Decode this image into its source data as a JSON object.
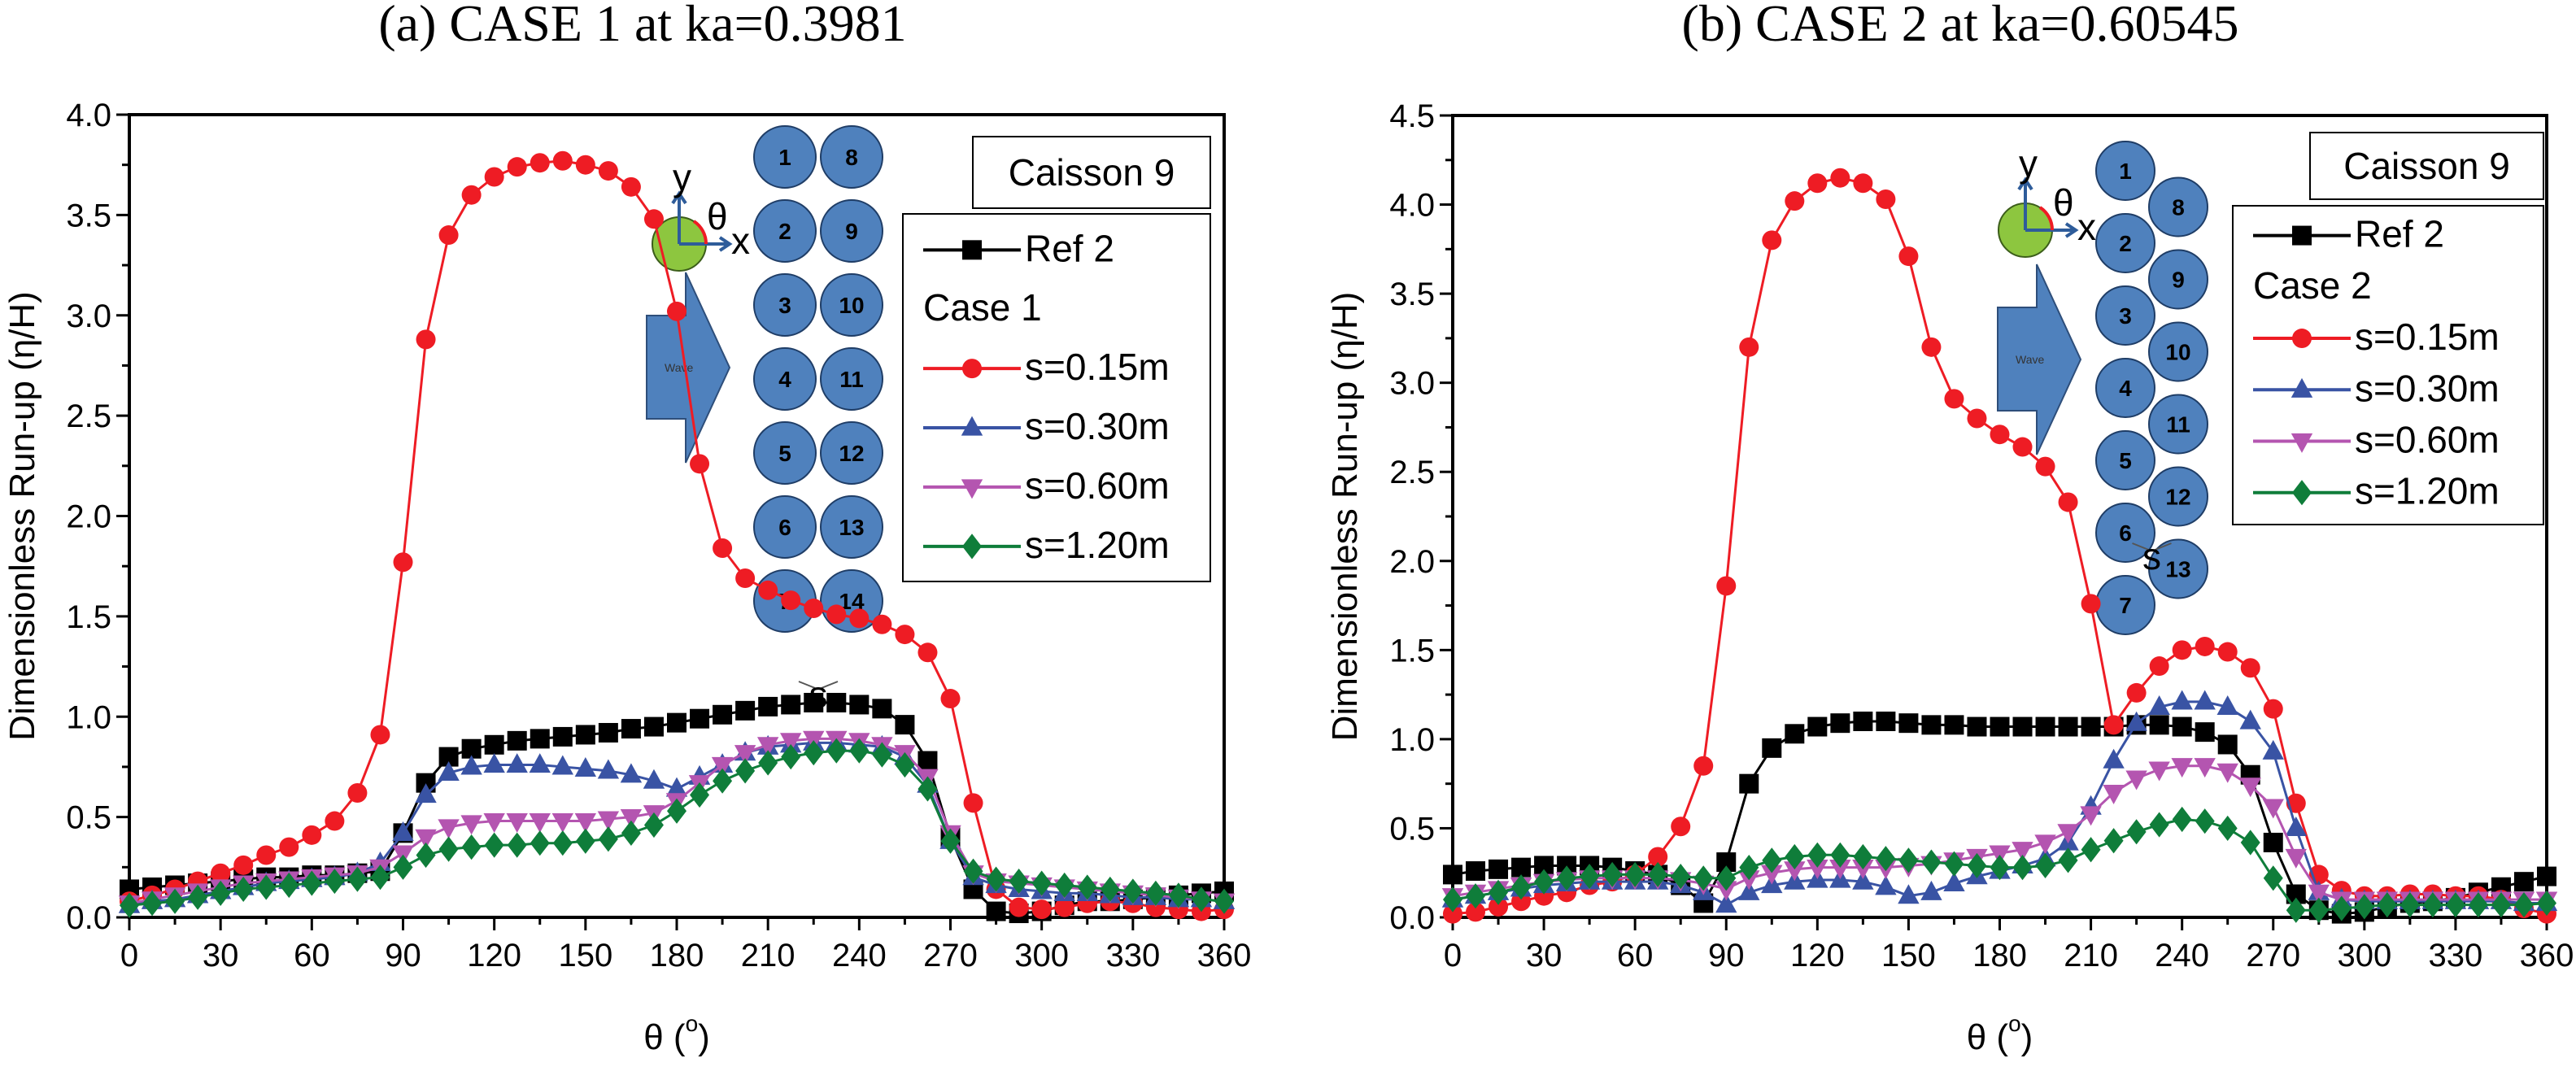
{
  "chart_data": [
    {
      "type": "line",
      "title": "(a) CASE 1 at ka=0.3981",
      "xlabel": "θ (°)",
      "xlabel_main": "θ (",
      "xlabel_sup": "o",
      "xlabel_close": ")",
      "ylabel": "Dimensionless Run-up (η/H)",
      "xlim": [
        0,
        360
      ],
      "ylim": [
        0,
        4.0
      ],
      "xticks": [
        0,
        30,
        60,
        90,
        120,
        150,
        180,
        210,
        240,
        270,
        300,
        330,
        360
      ],
      "xtick_labels": [
        "0",
        "30",
        "60",
        "90",
        "120",
        "150",
        "180",
        "210",
        "240",
        "270",
        "300",
        "330",
        "360"
      ],
      "yticks": [
        0,
        0.5,
        1.0,
        1.5,
        2.0,
        2.5,
        3.0,
        3.5,
        4.0
      ],
      "ytick_labels": [
        "0.0",
        "0.5",
        "1.0",
        "1.5",
        "2.0",
        "2.5",
        "3.0",
        "3.5",
        "4.0"
      ],
      "grid": false,
      "annotation_box": "Caisson 9",
      "legend_group_label": "Case 1",
      "legend_position": "top-right",
      "inset": {
        "axes": {
          "y": "y",
          "x": "x",
          "angle": "θ"
        },
        "arrow_label": "Wave",
        "gap_label": "s",
        "column_a": [
          "1",
          "2",
          "3",
          "4",
          "5",
          "6",
          "7"
        ],
        "column_b": [
          "8",
          "9",
          "10",
          "11",
          "12",
          "13",
          "14"
        ],
        "staggered": false
      },
      "x": [
        0,
        7.5,
        15,
        22.5,
        30,
        37.5,
        45,
        52.5,
        60,
        67.5,
        75,
        82.5,
        90,
        97.5,
        105,
        112.5,
        120,
        127.5,
        135,
        142.5,
        150,
        157.5,
        165,
        172.5,
        180,
        187.5,
        195,
        202.5,
        210,
        217.5,
        225,
        232.5,
        240,
        247.5,
        255,
        262.5,
        270,
        277.5,
        285,
        292.5,
        300,
        307.5,
        315,
        322.5,
        330,
        337.5,
        345,
        352.5,
        360
      ],
      "series": [
        {
          "name": "Ref 2",
          "color": "#000000",
          "marker": "square",
          "values": [
            0.14,
            0.15,
            0.16,
            0.17,
            0.18,
            0.19,
            0.2,
            0.2,
            0.21,
            0.21,
            0.22,
            0.23,
            0.42,
            0.67,
            0.8,
            0.84,
            0.86,
            0.88,
            0.89,
            0.9,
            0.91,
            0.92,
            0.94,
            0.95,
            0.97,
            0.99,
            1.01,
            1.03,
            1.05,
            1.06,
            1.07,
            1.07,
            1.06,
            1.04,
            0.96,
            0.78,
            0.4,
            0.14,
            0.03,
            0.02,
            0.03,
            0.06,
            0.08,
            0.08,
            0.09,
            0.1,
            0.11,
            0.12,
            0.13
          ]
        },
        {
          "name": "s=0.15m",
          "color": "#ee1c24",
          "marker": "circle",
          "values": [
            0.08,
            0.11,
            0.14,
            0.18,
            0.22,
            0.26,
            0.31,
            0.35,
            0.41,
            0.48,
            0.62,
            0.91,
            1.77,
            2.88,
            3.4,
            3.6,
            3.69,
            3.74,
            3.76,
            3.77,
            3.75,
            3.72,
            3.64,
            3.48,
            3.02,
            2.26,
            1.84,
            1.69,
            1.63,
            1.58,
            1.54,
            1.51,
            1.49,
            1.46,
            1.41,
            1.32,
            1.09,
            0.57,
            0.14,
            0.05,
            0.04,
            0.05,
            0.07,
            0.08,
            0.07,
            0.05,
            0.04,
            0.03,
            0.04
          ]
        },
        {
          "name": "s=0.30m",
          "color": "#3953a4",
          "marker": "triangle-up",
          "values": [
            0.06,
            0.08,
            0.09,
            0.11,
            0.13,
            0.15,
            0.17,
            0.18,
            0.19,
            0.2,
            0.22,
            0.27,
            0.42,
            0.61,
            0.72,
            0.75,
            0.76,
            0.76,
            0.76,
            0.75,
            0.74,
            0.73,
            0.71,
            0.68,
            0.64,
            0.7,
            0.76,
            0.82,
            0.85,
            0.86,
            0.87,
            0.87,
            0.86,
            0.85,
            0.8,
            0.66,
            0.38,
            0.2,
            0.16,
            0.14,
            0.13,
            0.12,
            0.12,
            0.11,
            0.1,
            0.1,
            0.09,
            0.09,
            0.08
          ]
        },
        {
          "name": "s=0.60m",
          "color": "#b455b0",
          "marker": "triangle-down",
          "values": [
            0.07,
            0.09,
            0.11,
            0.13,
            0.15,
            0.17,
            0.18,
            0.19,
            0.2,
            0.21,
            0.22,
            0.25,
            0.32,
            0.4,
            0.45,
            0.47,
            0.48,
            0.48,
            0.48,
            0.48,
            0.48,
            0.49,
            0.5,
            0.52,
            0.58,
            0.67,
            0.76,
            0.82,
            0.86,
            0.88,
            0.89,
            0.89,
            0.88,
            0.86,
            0.82,
            0.7,
            0.42,
            0.22,
            0.18,
            0.17,
            0.16,
            0.15,
            0.14,
            0.13,
            0.12,
            0.11,
            0.1,
            0.09,
            0.08
          ]
        },
        {
          "name": "s=1.20m",
          "color": "#0f7d3a",
          "marker": "diamond",
          "values": [
            0.06,
            0.07,
            0.08,
            0.1,
            0.12,
            0.14,
            0.15,
            0.16,
            0.17,
            0.18,
            0.19,
            0.2,
            0.25,
            0.31,
            0.34,
            0.35,
            0.36,
            0.36,
            0.37,
            0.37,
            0.38,
            0.39,
            0.42,
            0.46,
            0.53,
            0.61,
            0.68,
            0.73,
            0.77,
            0.8,
            0.82,
            0.83,
            0.83,
            0.81,
            0.76,
            0.64,
            0.38,
            0.23,
            0.19,
            0.18,
            0.17,
            0.16,
            0.15,
            0.14,
            0.13,
            0.12,
            0.11,
            0.09,
            0.08
          ]
        }
      ]
    },
    {
      "type": "line",
      "title": "(b) CASE 2 at ka=0.60545",
      "xlabel": "θ (°)",
      "xlabel_main": "θ (",
      "xlabel_sup": "o",
      "xlabel_close": ")",
      "ylabel": "Dimensionless Run-up (η/H)",
      "xlim": [
        0,
        360
      ],
      "ylim": [
        0,
        4.5
      ],
      "xticks": [
        0,
        30,
        60,
        90,
        120,
        150,
        180,
        210,
        240,
        270,
        300,
        330,
        360
      ],
      "xtick_labels": [
        "0",
        "30",
        "60",
        "90",
        "120",
        "150",
        "180",
        "210",
        "240",
        "270",
        "300",
        "330",
        "360"
      ],
      "yticks": [
        0,
        0.5,
        1.0,
        1.5,
        2.0,
        2.5,
        3.0,
        3.5,
        4.0,
        4.5
      ],
      "ytick_labels": [
        "0.0",
        "0.5",
        "1.0",
        "1.5",
        "2.0",
        "2.5",
        "3.0",
        "3.5",
        "4.0",
        "4.5"
      ],
      "grid": false,
      "annotation_box": "Caisson 9",
      "legend_group_label": "Case 2",
      "legend_position": "top-right",
      "inset": {
        "axes": {
          "y": "y",
          "x": "x",
          "angle": "θ"
        },
        "arrow_label": "Wave",
        "gap_label": "s",
        "column_a": [
          "1",
          "2",
          "3",
          "4",
          "5",
          "6",
          "7"
        ],
        "column_b": [
          "8",
          "9",
          "10",
          "11",
          "12",
          "13"
        ],
        "staggered": true
      },
      "x": [
        0,
        7.5,
        15,
        22.5,
        30,
        37.5,
        45,
        52.5,
        60,
        67.5,
        75,
        82.5,
        90,
        97.5,
        105,
        112.5,
        120,
        127.5,
        135,
        142.5,
        150,
        157.5,
        165,
        172.5,
        180,
        187.5,
        195,
        202.5,
        210,
        217.5,
        225,
        232.5,
        240,
        247.5,
        255,
        262.5,
        270,
        277.5,
        285,
        292.5,
        300,
        307.5,
        315,
        322.5,
        330,
        337.5,
        345,
        352.5,
        360
      ],
      "series": [
        {
          "name": "Ref 2",
          "color": "#000000",
          "marker": "square",
          "values": [
            0.24,
            0.26,
            0.27,
            0.28,
            0.29,
            0.29,
            0.29,
            0.28,
            0.26,
            0.24,
            0.18,
            0.08,
            0.31,
            0.75,
            0.95,
            1.03,
            1.07,
            1.09,
            1.1,
            1.1,
            1.09,
            1.08,
            1.08,
            1.07,
            1.07,
            1.07,
            1.07,
            1.07,
            1.07,
            1.07,
            1.08,
            1.08,
            1.07,
            1.04,
            0.97,
            0.8,
            0.42,
            0.13,
            0.04,
            0.02,
            0.03,
            0.06,
            0.08,
            0.09,
            0.11,
            0.14,
            0.17,
            0.2,
            0.23
          ]
        },
        {
          "name": "s=0.15m",
          "color": "#ee1c24",
          "marker": "circle",
          "values": [
            0.02,
            0.03,
            0.06,
            0.09,
            0.12,
            0.14,
            0.18,
            0.2,
            0.24,
            0.34,
            0.51,
            0.85,
            1.86,
            3.2,
            3.8,
            4.02,
            4.12,
            4.15,
            4.12,
            4.03,
            3.71,
            3.2,
            2.91,
            2.8,
            2.71,
            2.64,
            2.53,
            2.33,
            1.76,
            1.08,
            1.26,
            1.41,
            1.5,
            1.52,
            1.49,
            1.4,
            1.17,
            0.64,
            0.24,
            0.15,
            0.12,
            0.12,
            0.13,
            0.13,
            0.12,
            0.12,
            0.1,
            0.05,
            0.02
          ]
        },
        {
          "name": "s=0.30m",
          "color": "#3953a4",
          "marker": "triangle-up",
          "values": [
            0.1,
            0.12,
            0.14,
            0.16,
            0.18,
            0.19,
            0.2,
            0.2,
            0.2,
            0.2,
            0.18,
            0.14,
            0.07,
            0.14,
            0.18,
            0.2,
            0.21,
            0.21,
            0.2,
            0.17,
            0.12,
            0.14,
            0.19,
            0.23,
            0.26,
            0.29,
            0.33,
            0.42,
            0.62,
            0.88,
            1.09,
            1.18,
            1.21,
            1.21,
            1.18,
            1.1,
            0.93,
            0.5,
            0.14,
            0.1,
            0.09,
            0.09,
            0.09,
            0.09,
            0.09,
            0.09,
            0.09,
            0.08,
            0.08
          ]
        },
        {
          "name": "s=0.60m",
          "color": "#b455b0",
          "marker": "triangle-down",
          "values": [
            0.12,
            0.14,
            0.16,
            0.18,
            0.2,
            0.21,
            0.22,
            0.22,
            0.22,
            0.22,
            0.21,
            0.19,
            0.16,
            0.22,
            0.25,
            0.27,
            0.28,
            0.28,
            0.28,
            0.28,
            0.29,
            0.3,
            0.32,
            0.34,
            0.36,
            0.38,
            0.42,
            0.48,
            0.58,
            0.7,
            0.78,
            0.83,
            0.85,
            0.85,
            0.82,
            0.74,
            0.62,
            0.34,
            0.14,
            0.1,
            0.1,
            0.1,
            0.1,
            0.1,
            0.1,
            0.1,
            0.1,
            0.1,
            0.1
          ]
        },
        {
          "name": "s=1.20m",
          "color": "#0f7d3a",
          "marker": "diamond",
          "values": [
            0.1,
            0.12,
            0.14,
            0.17,
            0.2,
            0.22,
            0.23,
            0.24,
            0.24,
            0.24,
            0.23,
            0.22,
            0.22,
            0.28,
            0.32,
            0.34,
            0.35,
            0.35,
            0.34,
            0.33,
            0.32,
            0.31,
            0.3,
            0.29,
            0.28,
            0.28,
            0.29,
            0.32,
            0.38,
            0.43,
            0.48,
            0.52,
            0.55,
            0.54,
            0.5,
            0.42,
            0.22,
            0.04,
            0.04,
            0.05,
            0.06,
            0.07,
            0.07,
            0.07,
            0.07,
            0.07,
            0.07,
            0.07,
            0.08
          ]
        }
      ]
    }
  ]
}
